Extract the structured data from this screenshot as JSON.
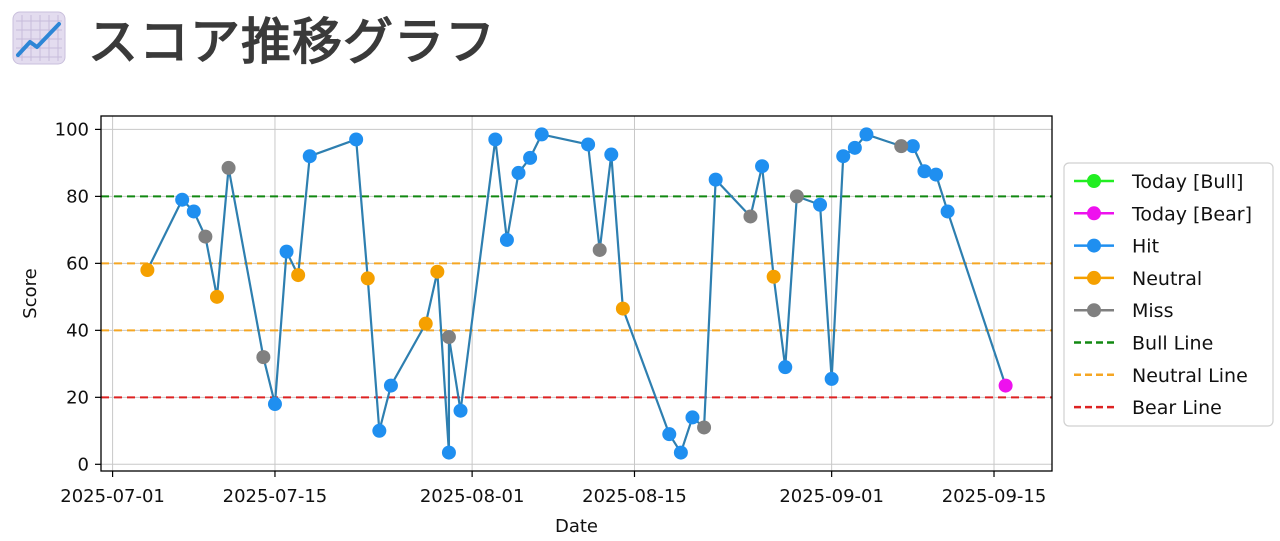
{
  "page": {
    "title": "スコア推移グラフ",
    "title_icon": "chart-increasing-icon"
  },
  "chart_data": {
    "type": "line",
    "xlabel": "Date",
    "ylabel": "Score",
    "xlim": [
      "2025-06-30",
      "2025-09-20"
    ],
    "ylim": [
      -2,
      104
    ],
    "x_ticks": [
      "2025-07-01",
      "2025-07-15",
      "2025-08-01",
      "2025-08-15",
      "2025-09-01",
      "2025-09-15"
    ],
    "y_ticks": [
      0,
      20,
      40,
      60,
      80,
      100
    ],
    "grid": true,
    "legend_position": "right",
    "line_color": "#2e7fb0",
    "series": [
      {
        "name": "Today [Bull]",
        "kind": "marker",
        "color": "#22ee22",
        "points": []
      },
      {
        "name": "Today [Bear]",
        "kind": "marker",
        "color": "#ee11ee",
        "points": [
          [
            "2025-09-16",
            23.5
          ]
        ]
      },
      {
        "name": "Hit",
        "kind": "marker",
        "color": "#1f8ff0",
        "points": [
          [
            "2025-07-07",
            79
          ],
          [
            "2025-07-08",
            75.5
          ],
          [
            "2025-07-15",
            18
          ],
          [
            "2025-07-16",
            63.5
          ],
          [
            "2025-07-18",
            92
          ],
          [
            "2025-07-22",
            97
          ],
          [
            "2025-07-24",
            10
          ],
          [
            "2025-07-25",
            23.5
          ],
          [
            "2025-07-30",
            3.5
          ],
          [
            "2025-07-31",
            16
          ],
          [
            "2025-08-03",
            97
          ],
          [
            "2025-08-04",
            67
          ],
          [
            "2025-08-05",
            87
          ],
          [
            "2025-08-06",
            91.5
          ],
          [
            "2025-08-07",
            98.5
          ],
          [
            "2025-08-11",
            95.5
          ],
          [
            "2025-08-13",
            92.5
          ],
          [
            "2025-08-18",
            9
          ],
          [
            "2025-08-19",
            3.5
          ],
          [
            "2025-08-20",
            14
          ],
          [
            "2025-08-22",
            85
          ],
          [
            "2025-08-26",
            89
          ],
          [
            "2025-08-28",
            29
          ],
          [
            "2025-08-31",
            77.5
          ],
          [
            "2025-09-01",
            25.5
          ],
          [
            "2025-09-02",
            92
          ],
          [
            "2025-09-03",
            94.5
          ],
          [
            "2025-09-04",
            98.5
          ],
          [
            "2025-09-08",
            95
          ],
          [
            "2025-09-09",
            87.5
          ],
          [
            "2025-09-10",
            86.5
          ],
          [
            "2025-09-11",
            75.5
          ]
        ]
      },
      {
        "name": "Neutral",
        "kind": "marker",
        "color": "#f5a000",
        "points": [
          [
            "2025-07-04",
            58
          ],
          [
            "2025-07-10",
            50
          ],
          [
            "2025-07-17",
            56.5
          ],
          [
            "2025-07-23",
            55.5
          ],
          [
            "2025-07-28",
            42
          ],
          [
            "2025-07-29",
            57.5
          ],
          [
            "2025-08-14",
            46.5
          ],
          [
            "2025-08-27",
            56
          ]
        ]
      },
      {
        "name": "Miss",
        "kind": "marker",
        "color": "#808080",
        "points": [
          [
            "2025-07-09",
            68
          ],
          [
            "2025-07-11",
            88.5
          ],
          [
            "2025-07-14",
            32
          ],
          [
            "2025-07-30",
            38
          ],
          [
            "2025-08-12",
            64
          ],
          [
            "2025-08-21",
            11
          ],
          [
            "2025-08-25",
            74
          ],
          [
            "2025-08-29",
            80
          ],
          [
            "2025-09-07",
            95
          ]
        ]
      },
      {
        "name": "Bull Line",
        "kind": "hline",
        "color": "#118811",
        "y": 80
      },
      {
        "name": "Neutral Line",
        "kind": "hline",
        "color": "#f5a623",
        "y": 60,
        "extra_y": [
          40
        ]
      },
      {
        "name": "Bear Line",
        "kind": "hline",
        "color": "#dd2222",
        "y": 20
      }
    ]
  }
}
